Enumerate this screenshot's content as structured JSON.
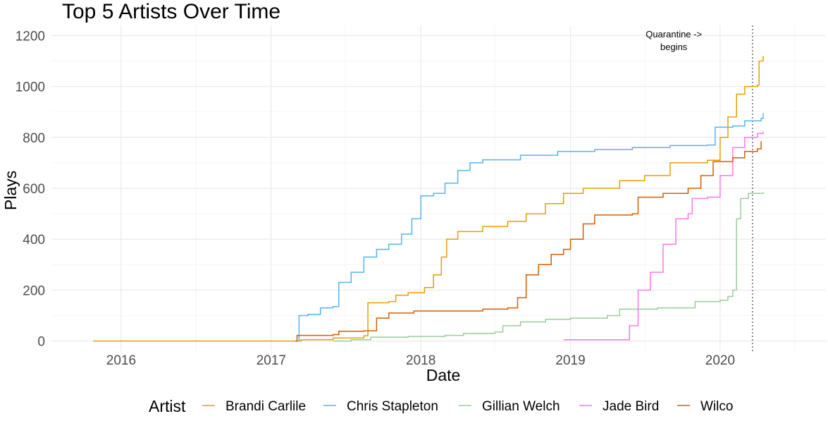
{
  "chart_data": {
    "type": "line",
    "title": "Top 5 Artists Over Time",
    "xlabel": "Date",
    "ylabel": "Plays",
    "x_tick_labels": [
      "2016",
      "2017",
      "2018",
      "2019",
      "2020"
    ],
    "y_tick_labels": [
      "0",
      "200",
      "400",
      "600",
      "800",
      "1000",
      "1200"
    ],
    "xlim": [
      "2015-07-15",
      "2020-09-15"
    ],
    "ylim": [
      -40,
      1240
    ],
    "grid": true,
    "legend": {
      "title": "Artist",
      "position": "bottom"
    },
    "annotation": {
      "lines": [
        "Quarantine ->",
        "begins"
      ],
      "date": "2020-03-20",
      "style": "dotted vertical line"
    },
    "series": [
      {
        "name": "Brandi Carlile",
        "color": "#E69F00",
        "points": [
          [
            "2015-10-25",
            0
          ],
          [
            "2017-03-01",
            0
          ],
          [
            "2017-03-15",
            5
          ],
          [
            "2017-06-01",
            12
          ],
          [
            "2017-08-15",
            20
          ],
          [
            "2017-08-25",
            150
          ],
          [
            "2017-10-15",
            155
          ],
          [
            "2017-11-01",
            180
          ],
          [
            "2017-12-01",
            190
          ],
          [
            "2018-01-10",
            210
          ],
          [
            "2018-02-01",
            260
          ],
          [
            "2018-02-20",
            330
          ],
          [
            "2018-03-05",
            400
          ],
          [
            "2018-04-01",
            430
          ],
          [
            "2018-06-01",
            450
          ],
          [
            "2018-08-01",
            470
          ],
          [
            "2018-09-15",
            500
          ],
          [
            "2018-11-01",
            540
          ],
          [
            "2018-12-15",
            580
          ],
          [
            "2019-02-01",
            600
          ],
          [
            "2019-05-01",
            630
          ],
          [
            "2019-06-01",
            630
          ],
          [
            "2019-07-01",
            650
          ],
          [
            "2019-09-01",
            700
          ],
          [
            "2019-12-01",
            710
          ],
          [
            "2020-01-01",
            800
          ],
          [
            "2020-01-20",
            880
          ],
          [
            "2020-02-10",
            970
          ],
          [
            "2020-03-01",
            1000
          ],
          [
            "2020-04-01",
            1005
          ],
          [
            "2020-04-05",
            1100
          ],
          [
            "2020-04-15",
            1120
          ]
        ]
      },
      {
        "name": "Chris Stapleton",
        "color": "#56B4E9",
        "points": [
          [
            "2017-03-01",
            0
          ],
          [
            "2017-03-10",
            100
          ],
          [
            "2017-04-01",
            105
          ],
          [
            "2017-05-01",
            130
          ],
          [
            "2017-06-01",
            135
          ],
          [
            "2017-06-15",
            230
          ],
          [
            "2017-07-15",
            270
          ],
          [
            "2017-08-15",
            330
          ],
          [
            "2017-09-15",
            360
          ],
          [
            "2017-10-15",
            380
          ],
          [
            "2017-11-15",
            420
          ],
          [
            "2017-12-10",
            480
          ],
          [
            "2018-01-01",
            570
          ],
          [
            "2018-02-01",
            580
          ],
          [
            "2018-03-01",
            620
          ],
          [
            "2018-04-01",
            670
          ],
          [
            "2018-05-01",
            700
          ],
          [
            "2018-06-01",
            712
          ],
          [
            "2018-09-01",
            730
          ],
          [
            "2018-12-01",
            745
          ],
          [
            "2019-03-01",
            752
          ],
          [
            "2019-06-01",
            760
          ],
          [
            "2019-09-01",
            768
          ],
          [
            "2019-12-01",
            770
          ],
          [
            "2019-12-20",
            840
          ],
          [
            "2020-02-01",
            845
          ],
          [
            "2020-03-01",
            865
          ],
          [
            "2020-04-10",
            875
          ],
          [
            "2020-04-15",
            895
          ]
        ]
      },
      {
        "name": "Gillian Welch",
        "color": "#99CC9D",
        "points": [
          [
            "2017-06-01",
            0
          ],
          [
            "2017-07-15",
            5
          ],
          [
            "2017-09-01",
            15
          ],
          [
            "2017-12-01",
            18
          ],
          [
            "2018-03-01",
            22
          ],
          [
            "2018-04-15",
            30
          ],
          [
            "2018-07-01",
            35
          ],
          [
            "2018-07-20",
            60
          ],
          [
            "2018-09-01",
            75
          ],
          [
            "2018-11-01",
            85
          ],
          [
            "2019-01-01",
            90
          ],
          [
            "2019-04-01",
            100
          ],
          [
            "2019-05-01",
            125
          ],
          [
            "2019-08-01",
            130
          ],
          [
            "2019-11-01",
            155
          ],
          [
            "2020-01-01",
            160
          ],
          [
            "2020-01-20",
            175
          ],
          [
            "2020-02-01",
            200
          ],
          [
            "2020-02-10",
            480
          ],
          [
            "2020-02-20",
            560
          ],
          [
            "2020-03-10",
            580
          ],
          [
            "2020-04-15",
            585
          ]
        ]
      },
      {
        "name": "Jade Bird",
        "color": "#FF77E8",
        "points": [
          [
            "2018-12-15",
            5
          ],
          [
            "2019-05-15",
            5
          ],
          [
            "2019-05-25",
            60
          ],
          [
            "2019-06-15",
            200
          ],
          [
            "2019-07-15",
            270
          ],
          [
            "2019-08-15",
            380
          ],
          [
            "2019-09-15",
            480
          ],
          [
            "2019-10-15",
            500
          ],
          [
            "2019-10-25",
            560
          ],
          [
            "2019-12-01",
            565
          ],
          [
            "2020-01-01",
            650
          ],
          [
            "2020-02-01",
            760
          ],
          [
            "2020-03-01",
            800
          ],
          [
            "2020-04-01",
            815
          ],
          [
            "2020-04-15",
            822
          ]
        ]
      },
      {
        "name": "Wilco",
        "color": "#D55E00",
        "points": [
          [
            "2017-03-01",
            0
          ],
          [
            "2017-03-05",
            22
          ],
          [
            "2017-06-01",
            25
          ],
          [
            "2017-06-15",
            38
          ],
          [
            "2017-08-15",
            40
          ],
          [
            "2017-09-15",
            90
          ],
          [
            "2017-10-15",
            110
          ],
          [
            "2017-12-15",
            118
          ],
          [
            "2018-06-01",
            125
          ],
          [
            "2018-08-01",
            130
          ],
          [
            "2018-08-25",
            170
          ],
          [
            "2018-09-15",
            260
          ],
          [
            "2018-10-15",
            300
          ],
          [
            "2018-11-15",
            340
          ],
          [
            "2018-12-15",
            360
          ],
          [
            "2019-01-01",
            400
          ],
          [
            "2019-02-01",
            460
          ],
          [
            "2019-03-01",
            495
          ],
          [
            "2019-06-01",
            500
          ],
          [
            "2019-06-15",
            565
          ],
          [
            "2019-08-15",
            580
          ],
          [
            "2019-10-15",
            600
          ],
          [
            "2019-11-15",
            650
          ],
          [
            "2019-12-15",
            705
          ],
          [
            "2020-02-01",
            720
          ],
          [
            "2020-03-01",
            745
          ],
          [
            "2020-04-01",
            755
          ],
          [
            "2020-04-10",
            785
          ]
        ]
      }
    ]
  }
}
